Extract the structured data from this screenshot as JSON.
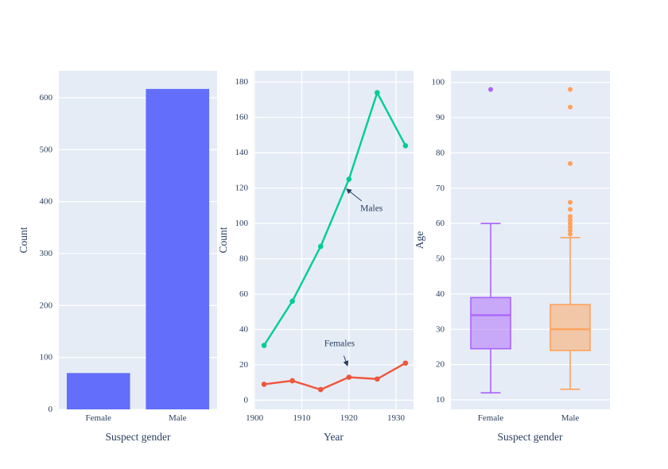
{
  "figure_style": {
    "background": "#ffffff",
    "plot_bg": "#E5ECF6",
    "grid_color": "#ffffff",
    "font_color": "#2a3f5f",
    "tick_font_size": 11,
    "title_font_size": 13.5,
    "annotation_font_size": 11.5
  },
  "chart_data": [
    {
      "name": "gender-count-bar",
      "type": "bar",
      "xlabel": "Suspect gender",
      "ylabel": "Count",
      "categories": [
        "Female",
        "Male"
      ],
      "values": [
        70,
        617
      ],
      "color": "#636EFA",
      "yticks": [
        0,
        100,
        200,
        300,
        400,
        500,
        600
      ],
      "ylim": [
        0,
        652
      ],
      "grid": true,
      "legend": "none"
    },
    {
      "name": "count-by-year-line",
      "type": "line",
      "xlabel": "Year",
      "ylabel": "Count",
      "x": [
        1902,
        1908,
        1914,
        1920,
        1926,
        1932
      ],
      "series": [
        {
          "name": "Males",
          "color": "#00CC96",
          "values": [
            31,
            56,
            87,
            125,
            174,
            144
          ]
        },
        {
          "name": "Females",
          "color": "#EF553B",
          "values": [
            9,
            11,
            6,
            13,
            12,
            21
          ]
        }
      ],
      "xticks": [
        1900,
        1910,
        1920,
        1930
      ],
      "yticks": [
        0,
        20,
        40,
        60,
        80,
        100,
        120,
        140,
        160,
        180
      ],
      "xlim": [
        1899.8,
        1933.7
      ],
      "ylim": [
        -5.2,
        186.4
      ],
      "grid": true,
      "legend": "none",
      "annotations": [
        {
          "text": "Males",
          "target_x": 1919.5,
          "target_y": 119.5,
          "text_x": 1924.8,
          "text_y": 108.3
        },
        {
          "text": "Females",
          "target_x": 1919.7,
          "target_y": 19.5,
          "text_x": 1918.0,
          "text_y": 31.9
        }
      ]
    },
    {
      "name": "age-by-gender-box",
      "type": "box",
      "xlabel": "Suspect gender",
      "ylabel": "Age",
      "categories": [
        "Female",
        "Male"
      ],
      "boxes": [
        {
          "label": "Female",
          "color": "#AB63FA",
          "min": 12,
          "q1": 24.5,
          "median": 34,
          "q3": 39,
          "max": 60,
          "outliers": [
            98
          ]
        },
        {
          "label": "Male",
          "color": "#FFA15A",
          "min": 13,
          "q1": 24,
          "median": 30,
          "q3": 37,
          "max": 56,
          "outliers": [
            57,
            58,
            59,
            60,
            61,
            62,
            64,
            66,
            77,
            93,
            98
          ]
        }
      ],
      "yticks": [
        10,
        20,
        30,
        40,
        50,
        60,
        70,
        80,
        90,
        100
      ],
      "ylim": [
        7.3,
        103.3
      ],
      "grid": true,
      "legend": "none"
    }
  ]
}
